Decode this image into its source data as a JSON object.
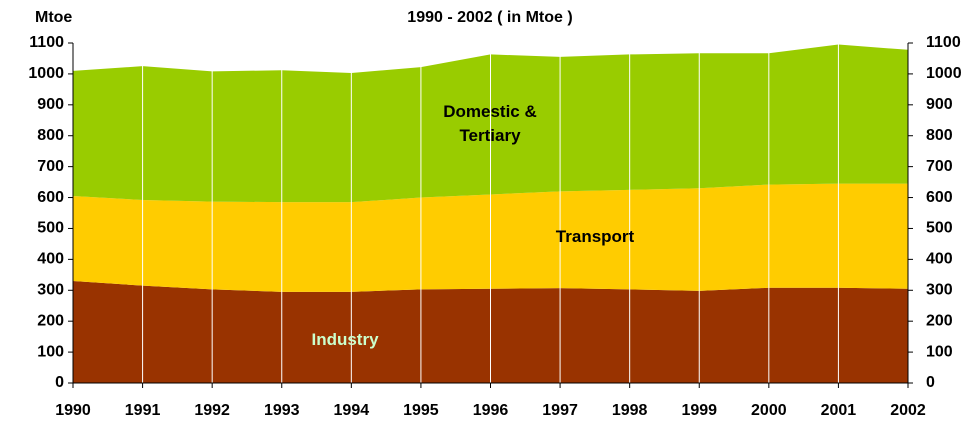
{
  "chart_data": {
    "type": "stacked_area",
    "title": "1990 - 2002 ( in Mtoe )",
    "y_label": "Mtoe",
    "categories": [
      "1990",
      "1991",
      "1992",
      "1993",
      "1994",
      "1995",
      "1996",
      "1997",
      "1998",
      "1999",
      "2000",
      "2001",
      "2002"
    ],
    "series": [
      {
        "name": "Industry",
        "color": "#993300",
        "values": [
          330,
          315,
          303,
          295,
          295,
          303,
          305,
          307,
          303,
          298,
          308,
          308,
          305
        ]
      },
      {
        "name": "Transport",
        "color": "#ffcc00",
        "values": [
          275,
          277,
          284,
          290,
          290,
          297,
          305,
          313,
          322,
          332,
          334,
          337,
          340
        ]
      },
      {
        "name": "Domestic & Tertiary",
        "color": "#99cc00",
        "values": [
          405,
          433,
          421,
          427,
          418,
          422,
          453,
          435,
          438,
          437,
          425,
          450,
          433
        ]
      }
    ],
    "ylim": [
      0,
      1100
    ],
    "yticks": [
      0,
      100,
      200,
      300,
      400,
      500,
      600,
      700,
      800,
      900,
      1000,
      1100
    ],
    "grid": true
  }
}
